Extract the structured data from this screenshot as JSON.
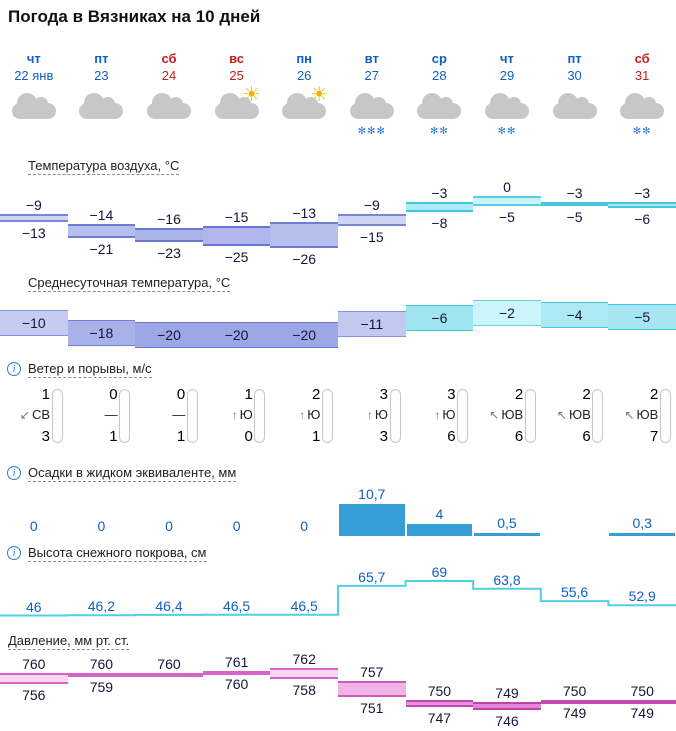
{
  "title": "Погода в Вязниках на 10 дней",
  "colors": {
    "day_blue": "#0f5fc4",
    "day_red": "#c22020",
    "label_blue": "#0f5fc4",
    "precip_bar": "#36a0d6",
    "snow_line": "#4fd0e4",
    "cloud_gray": "#c7c7c7",
    "sun_yellow": "#f5b300"
  },
  "days": [
    {
      "dow": "чт",
      "date": "22 янв",
      "weekend": false,
      "icon": "cloud",
      "snow": ""
    },
    {
      "dow": "пт",
      "date": "23",
      "weekend": false,
      "icon": "cloud",
      "snow": ""
    },
    {
      "dow": "сб",
      "date": "24",
      "weekend": true,
      "icon": "cloud",
      "snow": ""
    },
    {
      "dow": "вс",
      "date": "25",
      "weekend": true,
      "icon": "cloud-sun",
      "snow": ""
    },
    {
      "dow": "пн",
      "date": "26",
      "weekend": false,
      "icon": "cloud-sun",
      "snow": ""
    },
    {
      "dow": "вт",
      "date": "27",
      "weekend": false,
      "icon": "cloud",
      "snow": "✻✻✻"
    },
    {
      "dow": "ср",
      "date": "28",
      "weekend": false,
      "icon": "cloud",
      "snow": "✻✻"
    },
    {
      "dow": "чт",
      "date": "29",
      "weekend": false,
      "icon": "cloud",
      "snow": "✻✻"
    },
    {
      "dow": "пт",
      "date": "30",
      "weekend": false,
      "icon": "cloud",
      "snow": ""
    },
    {
      "dow": "сб",
      "date": "31",
      "weekend": true,
      "icon": "cloud",
      "snow": "✻✻"
    }
  ],
  "sections": {
    "temp": {
      "title": "Температура воздуха, °C",
      "info": false
    },
    "avg": {
      "title": "Среднесуточная температура, °C",
      "info": false
    },
    "wind": {
      "title": "Ветер и порывы, м/с",
      "info": true
    },
    "precip": {
      "title": "Осадки в жидком эквиваленте, мм",
      "info": true
    },
    "snow": {
      "title": "Высота снежного покрова, см",
      "info": true
    },
    "pressure": {
      "title": "Давление, мм рт. ст.",
      "info": false
    }
  },
  "chart_data": [
    {
      "id": "temp",
      "type": "area",
      "title": "Температура воздуха, °C",
      "categories": [
        "22",
        "23",
        "24",
        "25",
        "26",
        "27",
        "28",
        "29",
        "30",
        "31"
      ],
      "series": [
        {
          "name": "max",
          "values": [
            -9,
            -14,
            -16,
            -15,
            -13,
            -9,
            -3,
            0,
            -3,
            -3
          ],
          "labels": [
            "−9",
            "−14",
            "−16",
            "−15",
            "−13",
            "−9",
            "−3",
            "0",
            "−3",
            "−3"
          ]
        },
        {
          "name": "min",
          "values": [
            -13,
            -21,
            -23,
            -25,
            -26,
            -15,
            -8,
            -5,
            -5,
            -6
          ],
          "labels": [
            "−13",
            "−21",
            "−23",
            "−25",
            "−26",
            "−15",
            "−8",
            "−5",
            "−5",
            "−6"
          ]
        }
      ],
      "ylim": [
        -26,
        0
      ],
      "fills": [
        "#cdd4f4",
        "#b6beee",
        "#aab3ea",
        "#aeb6eb",
        "#b6beee",
        "#cdd4f4",
        "#aeeaf5",
        "#c8f3f9",
        "#b6edf6",
        "#b0ebf5"
      ],
      "edges": [
        "#7b86d8",
        "#6f7bd4",
        "#6a76d2",
        "#6a76d2",
        "#6f7bd4",
        "#7b86d8",
        "#3dc8dd",
        "#55d0e2",
        "#44cade",
        "#44cade"
      ]
    },
    {
      "id": "avg",
      "type": "area",
      "title": "Среднесуточная температура, °C",
      "categories": [
        "22",
        "23",
        "24",
        "25",
        "26",
        "27",
        "28",
        "29",
        "30",
        "31"
      ],
      "values": [
        -10,
        -18,
        -20,
        -20,
        -20,
        -11,
        -6,
        -2,
        -4,
        -5
      ],
      "labels": [
        "−10",
        "−18",
        "−20",
        "−20",
        "−20",
        "−11",
        "−6",
        "−2",
        "−4",
        "−5"
      ],
      "ylim": [
        -20,
        -2
      ],
      "fills": [
        "#c5ccf2",
        "#a8b1e9",
        "#9da7e6",
        "#9da7e6",
        "#9da7e6",
        "#c1c9f1",
        "#9fe4f1",
        "#cbf5fa",
        "#ade9f4",
        "#a5e6f2"
      ],
      "edges": [
        "#8791db",
        "#727ed5",
        "#6a76d2",
        "#6a76d2",
        "#6a76d2",
        "#858fda",
        "#3ac6db",
        "#62d4e5",
        "#46cbdf",
        "#40c9de"
      ]
    },
    {
      "id": "wind",
      "type": "table",
      "title": "Ветер и порывы, м/с",
      "categories": [
        "22",
        "23",
        "24",
        "25",
        "26",
        "27",
        "28",
        "29",
        "30",
        "31"
      ],
      "speed": [
        1,
        0,
        0,
        1,
        2,
        3,
        3,
        2,
        2,
        2
      ],
      "direction": [
        "СВ",
        "—",
        "—",
        "Ю",
        "Ю",
        "Ю",
        "Ю",
        "ЮВ",
        "ЮВ",
        "ЮВ"
      ],
      "arrows": [
        "↙",
        "",
        "",
        "↑",
        "↑",
        "↑",
        "↑",
        "↖",
        "↖",
        "↖"
      ],
      "gusts": [
        3,
        1,
        1,
        0,
        1,
        3,
        6,
        6,
        6,
        7
      ]
    },
    {
      "id": "precip",
      "type": "bar",
      "title": "Осадки в жидком эквиваленте, мм",
      "categories": [
        "22",
        "23",
        "24",
        "25",
        "26",
        "27",
        "28",
        "29",
        "30",
        "31"
      ],
      "values": [
        0,
        0,
        0,
        0,
        0,
        10.7,
        4,
        0.5,
        null,
        0.3
      ],
      "labels": [
        "0",
        "0",
        "0",
        "0",
        "0",
        "10,7",
        "4",
        "0,5",
        "",
        "0,3"
      ],
      "ylim": [
        0,
        12
      ]
    },
    {
      "id": "snow",
      "type": "line",
      "title": "Высота снежного покрова, см",
      "categories": [
        "22",
        "23",
        "24",
        "25",
        "26",
        "27",
        "28",
        "29",
        "30",
        "31"
      ],
      "values": [
        46,
        46.2,
        46.4,
        46.5,
        46.5,
        65.7,
        69,
        63.8,
        55.6,
        52.9
      ],
      "labels": [
        "46",
        "46,2",
        "46,4",
        "46,5",
        "46,5",
        "65,7",
        "69",
        "63,8",
        "55,6",
        "52,9"
      ],
      "ylim": [
        46,
        69
      ]
    },
    {
      "id": "pressure",
      "type": "area",
      "title": "Давление, мм рт. ст.",
      "categories": [
        "22",
        "23",
        "24",
        "25",
        "26",
        "27",
        "28",
        "29",
        "30",
        "31"
      ],
      "series": [
        {
          "name": "max",
          "values": [
            760,
            760,
            760,
            761,
            762,
            757,
            750,
            749,
            750,
            750
          ],
          "labels": [
            "760",
            "760",
            "760",
            "761",
            "762",
            "757",
            "750",
            "749",
            "750",
            "750"
          ]
        },
        {
          "name": "min",
          "values": [
            756,
            759,
            760,
            760,
            758,
            751,
            747,
            746,
            749,
            749
          ],
          "labels": [
            "756",
            "759",
            "",
            "760",
            "758",
            "751",
            "747",
            "746",
            "749",
            "749"
          ]
        }
      ],
      "ylim": [
        746,
        762
      ],
      "fills": [
        "#f6d7f1",
        "#f6d7f1",
        "#f6d7f1",
        "#f6d7f1",
        "#f6d7f1",
        "#f0b4e7",
        "#ea8fdd",
        "#e883da",
        "#ea8fdd",
        "#ea8fdd"
      ],
      "edges": [
        "#d863c8",
        "#d863c8",
        "#d863c8",
        "#d863c8",
        "#d863c8",
        "#cf58be",
        "#c148ae",
        "#bd44aa",
        "#c148ae",
        "#c148ae"
      ]
    }
  ]
}
